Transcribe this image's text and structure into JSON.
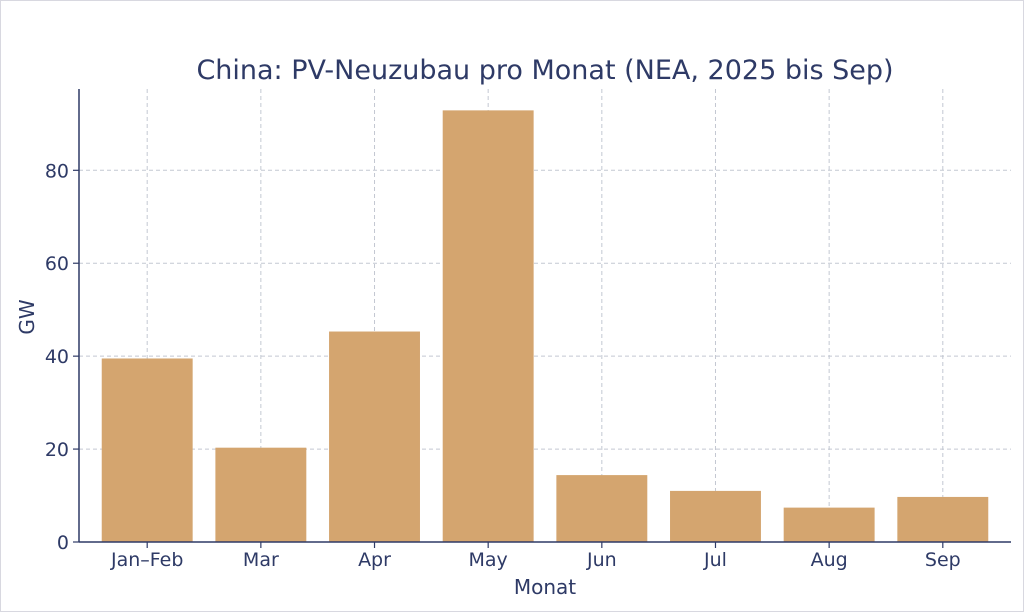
{
  "chart_data": {
    "type": "bar",
    "title": "China: PV-Neuzubau pro Monat (NEA, 2025 bis Sep)",
    "xlabel": "Monat",
    "ylabel": "GW",
    "categories": [
      "Jan–Feb",
      "Mar",
      "Apr",
      "May",
      "Jun",
      "Jul",
      "Aug",
      "Sep"
    ],
    "values": [
      39.5,
      20.3,
      45.3,
      92.9,
      14.4,
      11.0,
      7.4,
      9.7
    ],
    "ylim": [
      0,
      97.5
    ],
    "yticks": [
      0,
      20,
      40,
      60,
      80
    ],
    "grid": true,
    "legend": "none",
    "colors": {
      "bar": "#d4a56f",
      "axis": "#2e3a66",
      "grid": "#c3c8d2",
      "text": "#2e3a66"
    }
  }
}
